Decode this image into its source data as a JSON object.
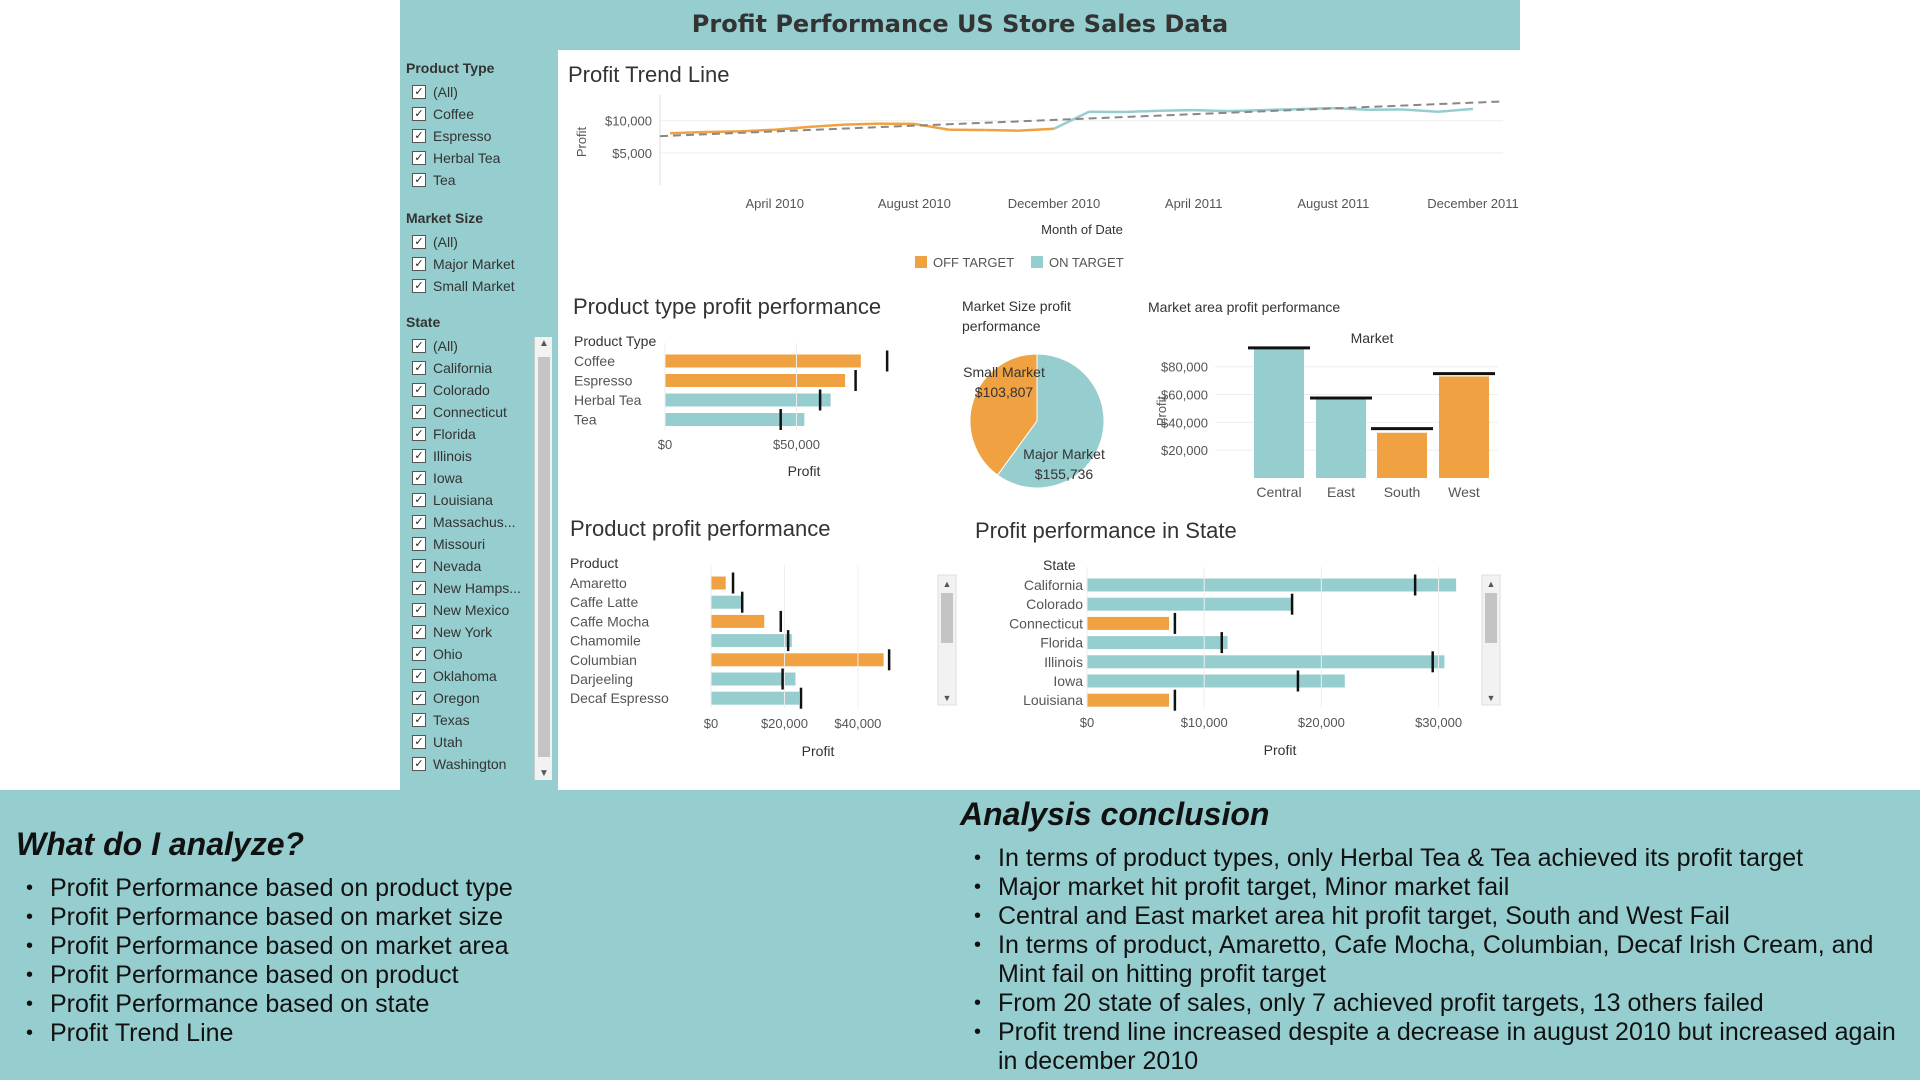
{
  "dashboard": {
    "title": "Profit Performance US Store Sales Data"
  },
  "colors": {
    "panel": "#96cdcf",
    "off_target": "#f0a141",
    "on_target": "#96cdcf",
    "target_marker": "#111111"
  },
  "filters": {
    "product_type": {
      "label": "Product Type",
      "items": [
        "(All)",
        "Coffee",
        "Espresso",
        "Herbal Tea",
        "Tea"
      ]
    },
    "market_size": {
      "label": "Market Size",
      "items": [
        "(All)",
        "Major Market",
        "Small Market"
      ]
    },
    "state": {
      "label": "State",
      "items": [
        "(All)",
        "California",
        "Colorado",
        "Connecticut",
        "Florida",
        "Illinois",
        "Iowa",
        "Louisiana",
        "Massachus...",
        "Missouri",
        "Nevada",
        "New Hamps...",
        "New Mexico",
        "New York",
        "Ohio",
        "Oklahoma",
        "Oregon",
        "Texas",
        "Utah",
        "Washington"
      ]
    }
  },
  "legend": {
    "off_target": "OFF TARGET",
    "on_target": "ON TARGET"
  },
  "chart_data": [
    {
      "id": "trend",
      "type": "line",
      "title": "Profit Trend Line",
      "xlabel": "Month of Date",
      "ylabel": "Profit",
      "x_ticks": [
        "April 2010",
        "August 2010",
        "December 2010",
        "April 2011",
        "August 2011",
        "December 2011"
      ],
      "y_ticks": [
        "$5,000",
        "$10,000"
      ],
      "ylim": [
        0,
        14000
      ],
      "x": [
        "2010-01",
        "2010-02",
        "2010-03",
        "2010-04",
        "2010-05",
        "2010-06",
        "2010-07",
        "2010-08",
        "2010-09",
        "2010-10",
        "2010-11",
        "2010-12",
        "2011-01",
        "2011-02",
        "2011-03",
        "2011-04",
        "2011-05",
        "2011-06",
        "2011-07",
        "2011-08",
        "2011-09",
        "2011-10",
        "2011-11",
        "2011-12"
      ],
      "series": [
        {
          "values": [
            8050,
            8250,
            8350,
            8600,
            9050,
            9400,
            9550,
            9500,
            8600,
            8550,
            8450,
            8750,
            11400,
            11350,
            11550,
            11650,
            11500,
            11650,
            11800,
            11950,
            11700,
            11750,
            11400,
            11850
          ]
        }
      ],
      "status": [
        "off",
        "off",
        "off",
        "off",
        "off",
        "off",
        "off",
        "off",
        "off",
        "off",
        "off",
        "off",
        "on",
        "on",
        "on",
        "on",
        "on",
        "on",
        "on",
        "on",
        "on",
        "on",
        "on",
        "on"
      ],
      "trend_line": {
        "start": 7600,
        "end": 13000
      }
    },
    {
      "id": "product_type",
      "type": "bar",
      "title": "Product type profit performance",
      "category_header": "Product Type",
      "xlabel": "Profit",
      "x_ticks": [
        "$0",
        "$50,000"
      ],
      "xlim": [
        0,
        97000
      ],
      "categories": [
        "Coffee",
        "Espresso",
        "Herbal Tea",
        "Tea"
      ],
      "values": [
        74500,
        68500,
        63000,
        53000
      ],
      "targets": [
        84500,
        72500,
        59000,
        44000
      ],
      "status": [
        "off",
        "off",
        "on",
        "on"
      ]
    },
    {
      "id": "market_size",
      "type": "pie",
      "title": "Market Size profit performance",
      "categories": [
        "Small Market",
        "Major Market"
      ],
      "value_labels": [
        "$103,807",
        "$155,736"
      ],
      "values": [
        103807,
        155736
      ],
      "status": [
        "off",
        "on"
      ]
    },
    {
      "id": "market_area",
      "type": "bar",
      "title": "Market area profit performance",
      "column_header": "Market",
      "ylabel": "Profit",
      "y_ticks": [
        "$20,000",
        "$40,000",
        "$60,000",
        "$80,000"
      ],
      "ylim": [
        0,
        92000
      ],
      "categories": [
        "Central",
        "East",
        "South",
        "West"
      ],
      "values": [
        93000,
        57500,
        32500,
        73000
      ],
      "targets": [
        93500,
        57500,
        35500,
        75000
      ],
      "status": [
        "on",
        "on",
        "off",
        "off"
      ]
    },
    {
      "id": "product",
      "type": "bar",
      "title": "Product profit performance",
      "category_header": "Product",
      "xlabel": "Profit",
      "x_ticks": [
        "$0",
        "$20,000",
        "$40,000"
      ],
      "xlim": [
        0,
        55000
      ],
      "categories": [
        "Amaretto",
        "Caffe Latte",
        "Caffe Mocha",
        "Chamomile",
        "Columbian",
        "Darjeeling",
        "Decaf Espresso"
      ],
      "values": [
        4000,
        8500,
        14500,
        22000,
        47000,
        23000,
        24000
      ],
      "targets": [
        6000,
        8500,
        19000,
        21000,
        48500,
        19500,
        24500
      ],
      "status": [
        "off",
        "on",
        "off",
        "on",
        "off",
        "on",
        "on"
      ]
    },
    {
      "id": "state",
      "type": "bar",
      "title": "Profit performance in State",
      "category_header": "State",
      "xlabel": "Profit",
      "x_ticks": [
        "$0",
        "$10,000",
        "$20,000",
        "$30,000"
      ],
      "xlim": [
        0,
        32000
      ],
      "categories": [
        "California",
        "Colorado",
        "Connecticut",
        "Florida",
        "Illinois",
        "Iowa",
        "Louisiana"
      ],
      "values": [
        31500,
        17500,
        7000,
        12000,
        30500,
        22000,
        7000
      ],
      "targets": [
        28000,
        17500,
        7500,
        11500,
        29500,
        18000,
        7500
      ],
      "status": [
        "on",
        "on",
        "off",
        "on",
        "on",
        "on",
        "off"
      ]
    }
  ],
  "notes": {
    "analyze_heading": "What do I analyze?",
    "analyze_items": [
      "Profit Performance based on product type",
      "Profit Performance based on market size",
      "Profit Performance based on market area",
      "Profit Performance based on product",
      "Profit Performance based on state",
      "Profit Trend Line"
    ],
    "conclusion_heading": "Analysis conclusion",
    "conclusion_items": [
      "In terms of product types, only Herbal Tea & Tea achieved its profit target",
      "Major market hit profit target, Minor market fail",
      "Central and East market area hit profit target, South and West Fail",
      "In terms of product, Amaretto, Cafe Mocha, Columbian, Decaf Irish Cream, and Mint fail on hitting profit target",
      "From 20 state of sales, only 7 achieved profit targets, 13 others failed",
      "Profit trend line increased despite a decrease in august 2010 but increased again in december 2010"
    ]
  }
}
